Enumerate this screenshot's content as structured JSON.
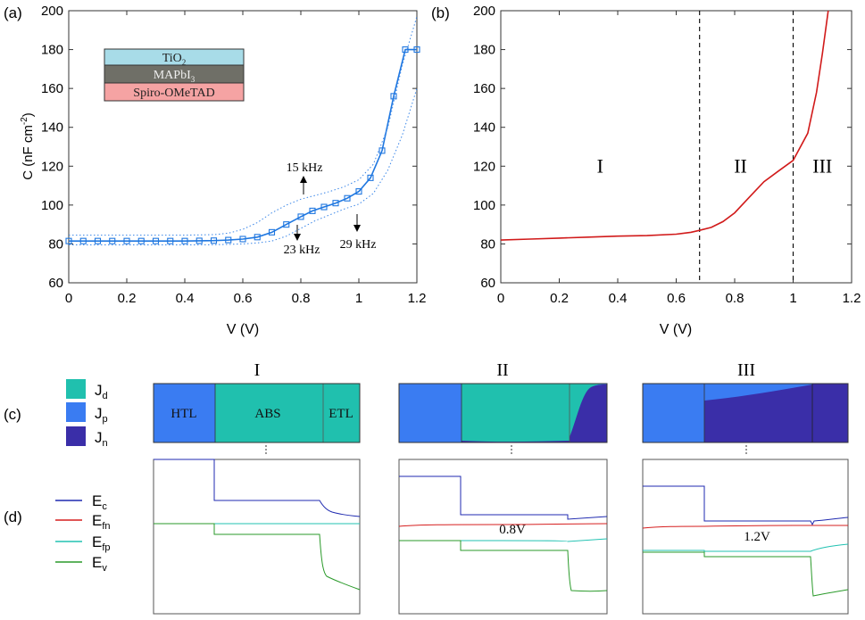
{
  "chart_data": [
    {
      "panel_label": "(a)",
      "type": "line",
      "xlabel": "V (V)",
      "ylabel": {
        "base": "C (nF cm",
        "exp": "-2",
        "close": ")"
      },
      "xlim": [
        0,
        1.2
      ],
      "ylim": [
        60,
        200
      ],
      "xticks": [
        "0",
        "0.2",
        "0.4",
        "0.6",
        "0.8",
        "1",
        "1.2"
      ],
      "yticks": [
        "60",
        "80",
        "100",
        "120",
        "140",
        "160",
        "180",
        "200"
      ],
      "series": [
        {
          "name": "C-V (markers)",
          "color": "#1f77e0",
          "marker": "square",
          "x": [
            0,
            0.05,
            0.1,
            0.15,
            0.2,
            0.25,
            0.3,
            0.35,
            0.4,
            0.45,
            0.5,
            0.55,
            0.6,
            0.65,
            0.7,
            0.75,
            0.8,
            0.84,
            0.88,
            0.92,
            0.96,
            1.0,
            1.04,
            1.08,
            1.12,
            1.16,
            1.2
          ],
          "y": [
            81.5,
            81.5,
            81.5,
            81.5,
            81.5,
            81.5,
            81.5,
            81.5,
            81.5,
            81.6,
            81.7,
            82,
            82.5,
            83.5,
            86,
            90,
            94,
            97,
            99,
            101,
            103.5,
            107,
            114,
            128,
            156,
            180,
            180
          ]
        },
        {
          "name": "15 kHz",
          "color": "#3a86e8",
          "style": "dotted",
          "x": [
            0,
            0.2,
            0.4,
            0.5,
            0.55,
            0.6,
            0.65,
            0.7,
            0.75,
            0.8,
            0.85,
            0.9,
            0.95,
            1.0,
            1.05,
            1.1,
            1.15,
            1.2
          ],
          "y": [
            84.5,
            84.5,
            84.5,
            84.8,
            85.5,
            87.5,
            91,
            96,
            100,
            103,
            105,
            107,
            109.5,
            113,
            121,
            140,
            172,
            197
          ]
        },
        {
          "name": "29 kHz",
          "color": "#3a86e8",
          "style": "dotted",
          "x": [
            0,
            0.2,
            0.4,
            0.5,
            0.55,
            0.6,
            0.65,
            0.7,
            0.75,
            0.8,
            0.85,
            0.9,
            0.95,
            1.0,
            1.05,
            1.1,
            1.15,
            1.2
          ],
          "y": [
            79.5,
            79.5,
            79.5,
            79.6,
            79.8,
            80,
            80.5,
            81.5,
            84,
            88,
            92,
            95,
            98,
            100.5,
            106,
            118,
            136,
            160
          ]
        }
      ],
      "annotations": [
        {
          "text": "15 kHz",
          "x": 0.8,
          "y": 112
        },
        {
          "text": "23 kHz",
          "x": 0.8,
          "y": 78
        },
        {
          "text": "29 kHz",
          "x": 1.0,
          "y": 79
        }
      ],
      "inset_stack": [
        "TiO",
        "MAPbI",
        "Spiro-OMeTAD"
      ],
      "inset_subscripts": [
        "2",
        "3"
      ],
      "inset_colors": [
        "#a8dce8",
        "#6f6f67",
        "#f5a3a3"
      ]
    },
    {
      "panel_label": "(b)",
      "type": "line",
      "xlabel": "V (V)",
      "ylabel": "",
      "xlim": [
        0,
        1.2
      ],
      "ylim": [
        60,
        200
      ],
      "xticks": [
        "0",
        "0.2",
        "0.4",
        "0.6",
        "0.8",
        "1",
        "1.2"
      ],
      "yticks": [
        "60",
        "80",
        "100",
        "120",
        "140",
        "160",
        "180",
        "200"
      ],
      "series": [
        {
          "name": "C-V",
          "color": "#d11a1a",
          "x": [
            0,
            0.1,
            0.2,
            0.3,
            0.4,
            0.5,
            0.6,
            0.65,
            0.68,
            0.72,
            0.76,
            0.8,
            0.85,
            0.9,
            0.95,
            1.0,
            1.05,
            1.08,
            1.1,
            1.12
          ],
          "y": [
            82,
            82.5,
            83,
            83.5,
            84,
            84.3,
            85,
            86,
            87,
            88.5,
            91.5,
            96,
            104,
            112,
            117.5,
            123,
            137,
            158,
            178,
            200
          ]
        }
      ],
      "vlines": [
        0.68,
        1.0
      ],
      "region_labels": [
        {
          "text": "I",
          "x": 0.34,
          "y": 120
        },
        {
          "text": "II",
          "x": 0.82,
          "y": 120
        },
        {
          "text": "III",
          "x": 1.1,
          "y": 120
        }
      ]
    }
  ],
  "bottom": {
    "row_labels": [
      "(c)",
      "(d)"
    ],
    "column_titles": [
      "I",
      "II",
      "III"
    ],
    "c_legend": [
      {
        "label": "J",
        "sub": "d",
        "color": "#20c0ae"
      },
      {
        "label": "J",
        "sub": "p",
        "color": "#3a7cf2"
      },
      {
        "label": "J",
        "sub": "n",
        "color": "#3a2ea8"
      }
    ],
    "c_layer_labels": [
      "HTL",
      "ABS",
      "ETL"
    ],
    "d_legend": [
      {
        "label": "E",
        "sub": "c",
        "color": "#1f2ab0"
      },
      {
        "label": "E",
        "sub": "fn",
        "color": "#d61f1f"
      },
      {
        "label": "E",
        "sub": "fp",
        "color": "#22c2b2"
      },
      {
        "label": "E",
        "sub": "v",
        "color": "#2a9a2a"
      }
    ],
    "d_voltage_labels": [
      "",
      "0.8V",
      "1.2V"
    ],
    "colors": {
      "Jd": "#20c0ae",
      "Jp": "#3a7cf2",
      "Jn": "#3a2ea8",
      "Ec": "#1f2ab0",
      "Efn": "#d61f1f",
      "Efp": "#22c2b2",
      "Ev": "#2a9a2a"
    }
  }
}
